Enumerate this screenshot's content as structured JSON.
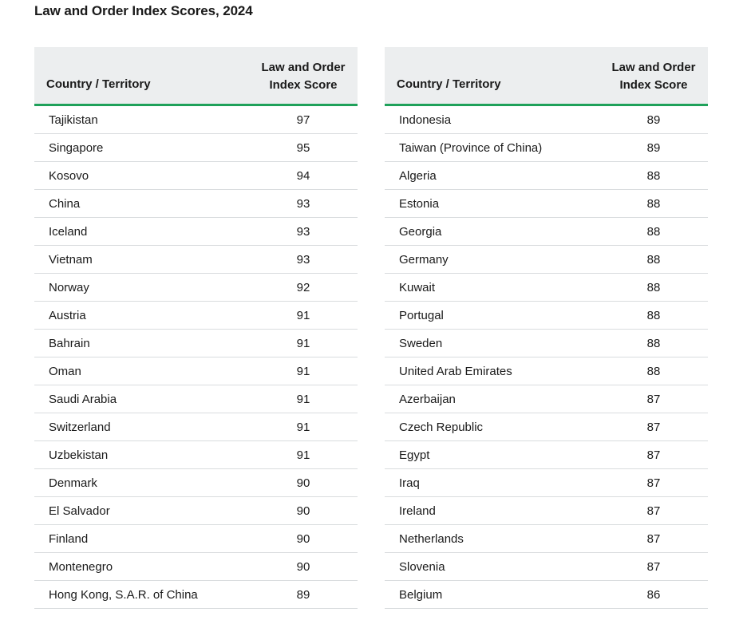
{
  "title": "Law and Order Index Scores, 2024",
  "columns": {
    "country": "Country / Territory",
    "score_line1": "Law and Order",
    "score_line2": "Index Score"
  },
  "left_rows": [
    {
      "country": "Tajikistan",
      "score": "97"
    },
    {
      "country": "Singapore",
      "score": "95"
    },
    {
      "country": "Kosovo",
      "score": "94"
    },
    {
      "country": "China",
      "score": "93"
    },
    {
      "country": "Iceland",
      "score": "93"
    },
    {
      "country": "Vietnam",
      "score": "93"
    },
    {
      "country": "Norway",
      "score": "92"
    },
    {
      "country": "Austria",
      "score": "91"
    },
    {
      "country": "Bahrain",
      "score": "91"
    },
    {
      "country": "Oman",
      "score": "91"
    },
    {
      "country": "Saudi Arabia",
      "score": "91"
    },
    {
      "country": "Switzerland",
      "score": "91"
    },
    {
      "country": "Uzbekistan",
      "score": "91"
    },
    {
      "country": "Denmark",
      "score": "90"
    },
    {
      "country": "El Salvador",
      "score": "90"
    },
    {
      "country": "Finland",
      "score": "90"
    },
    {
      "country": "Montenegro",
      "score": "90"
    },
    {
      "country": "Hong Kong, S.A.R. of China",
      "score": "89"
    }
  ],
  "right_rows": [
    {
      "country": "Indonesia",
      "score": "89"
    },
    {
      "country": "Taiwan (Province of China)",
      "score": "89"
    },
    {
      "country": "Algeria",
      "score": "88"
    },
    {
      "country": "Estonia",
      "score": "88"
    },
    {
      "country": "Georgia",
      "score": "88"
    },
    {
      "country": "Germany",
      "score": "88"
    },
    {
      "country": "Kuwait",
      "score": "88"
    },
    {
      "country": "Portugal",
      "score": "88"
    },
    {
      "country": "Sweden",
      "score": "88"
    },
    {
      "country": "United Arab Emirates",
      "score": "88"
    },
    {
      "country": "Azerbaijan",
      "score": "87"
    },
    {
      "country": "Czech Republic",
      "score": "87"
    },
    {
      "country": "Egypt",
      "score": "87"
    },
    {
      "country": "Iraq",
      "score": "87"
    },
    {
      "country": "Ireland",
      "score": "87"
    },
    {
      "country": "Netherlands",
      "score": "87"
    },
    {
      "country": "Slovenia",
      "score": "87"
    },
    {
      "country": "Belgium",
      "score": "86"
    }
  ],
  "colors": {
    "header_bg": "#eceeef",
    "accent": "#1fa15a",
    "divider": "#d9dcde"
  }
}
